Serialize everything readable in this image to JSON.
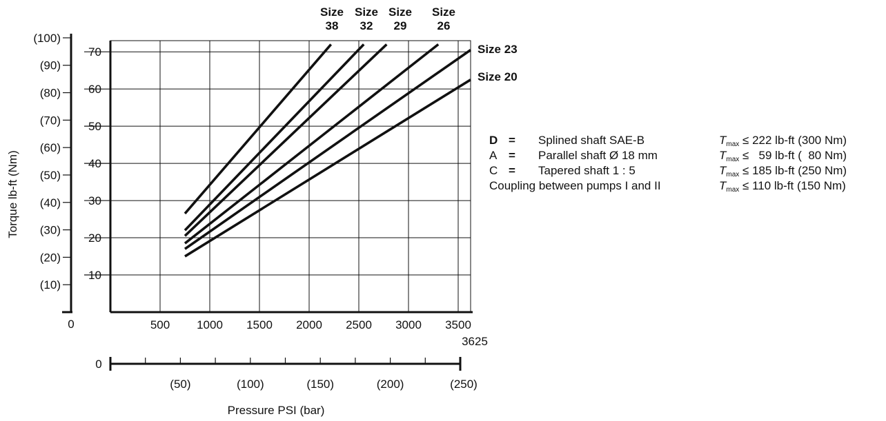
{
  "chart_data": {
    "type": "line",
    "xlabel": "Pressure PSI (bar)",
    "ylabel": "Torque lb-ft (Nm)",
    "x_ticks": [
      "500",
      "1000",
      "1500",
      "2000",
      "2500",
      "3000",
      "3500"
    ],
    "x_extra_label": "3625",
    "x_origin_label": "0",
    "xlim": [
      0,
      3625
    ],
    "bar_ticks": [
      "(50)",
      "(100)",
      "(150)",
      "(200)",
      "(250)"
    ],
    "bar_origin_label": "0",
    "bar_lim": [
      0,
      250
    ],
    "y_ticks": [
      "10",
      "20",
      "30",
      "40",
      "50",
      "60",
      "70"
    ],
    "y_nm_ticks": [
      "(10)",
      "(20)",
      "(30)",
      "(40)",
      "(50)",
      "(60)",
      "(70)",
      "(80)",
      "(90)",
      "(100)"
    ],
    "y_origin_label": "0",
    "ylim": [
      0,
      73
    ],
    "grid": true,
    "series": [
      {
        "name": "Size 38",
        "x": [
          750,
          2220
        ],
        "y": [
          26.5,
          72
        ]
      },
      {
        "name": "Size 32",
        "x": [
          750,
          2550
        ],
        "y": [
          22,
          72
        ]
      },
      {
        "name": "Size 29",
        "x": [
          750,
          2780
        ],
        "y": [
          20.5,
          72
        ]
      },
      {
        "name": "Size 26",
        "x": [
          750,
          3300
        ],
        "y": [
          18.5,
          72
        ]
      },
      {
        "name": "Size 23",
        "x": [
          750,
          3625
        ],
        "y": [
          17,
          70.5
        ]
      },
      {
        "name": "Size 20",
        "x": [
          750,
          3625
        ],
        "y": [
          15,
          62.5
        ]
      }
    ],
    "series_labels": [
      {
        "line1": "Size",
        "line2": "38"
      },
      {
        "line1": "Size",
        "line2": "32"
      },
      {
        "line1": "Size",
        "line2": "29"
      },
      {
        "line1": "Size",
        "line2": "26"
      },
      {
        "line1": "Size 23",
        "line2": ""
      },
      {
        "line1": "Size 20",
        "line2": ""
      }
    ]
  },
  "legend": {
    "rows": [
      {
        "key": "D",
        "eq": "=",
        "desc": "Splined shaft SAE-B",
        "t": "T",
        "sub": "max",
        "spec": "≤ 222 lb-ft (300 Nm)"
      },
      {
        "key": "A",
        "eq": "=",
        "desc": "Parallel shaft Ø 18 mm",
        "t": "T",
        "sub": "max",
        "spec": "≤   59 lb-ft (  80 Nm)"
      },
      {
        "key": "C",
        "eq": "=",
        "desc": "Tapered shaft 1 : 5",
        "t": "T",
        "sub": "max",
        "spec": "≤ 185 lb-ft (250 Nm)"
      }
    ],
    "coupling": {
      "desc": "Coupling between pumps I and II",
      "t": "T",
      "sub": "max",
      "spec": "≤ 110 lb-ft (150 Nm)"
    }
  }
}
